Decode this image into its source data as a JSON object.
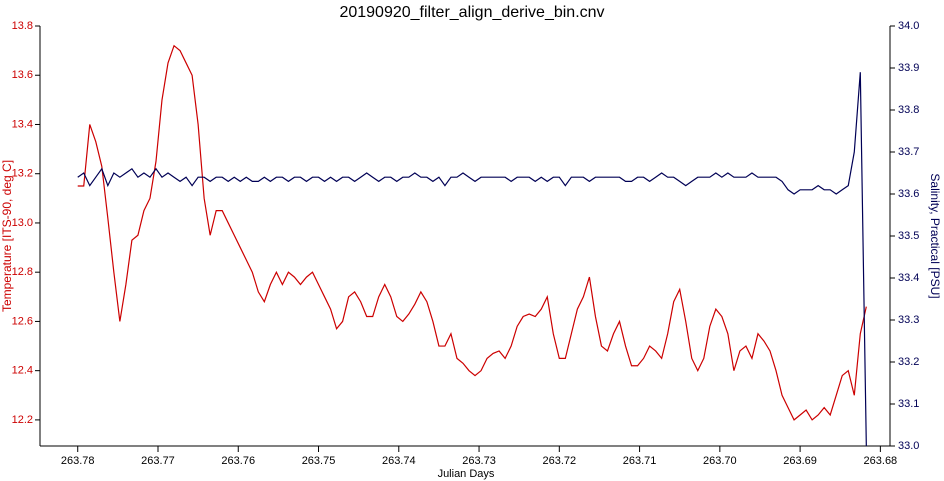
{
  "chart_data": {
    "type": "line",
    "title": "20190920_filter_align_derive_bin.cnv",
    "x_label": "Julian Days",
    "y_label": "Temperature [ITS-90, deg C]",
    "y2_label": "Salinity, Practical [PSU]",
    "xlim": [
      263.7847,
      263.6788
    ],
    "xticks": [
      263.78,
      263.77,
      263.76,
      263.75,
      263.74,
      263.73,
      263.72,
      263.71,
      {
        "value": 263.7,
        "label": "263.70"
      },
      263.69,
      263.68
    ],
    "ylim": [
      12.094,
      13.8
    ],
    "yticks": [
      12.2,
      12.4,
      12.6,
      12.8,
      {
        "value": 13,
        "label": "13.0"
      },
      13.2,
      13.4,
      13.6,
      13.8
    ],
    "y2lim": [
      33,
      34
    ],
    "y2ticks": [
      {
        "value": 33,
        "label": "33.0"
      },
      33.1,
      33.2,
      33.3,
      33.4,
      33.5,
      33.6,
      33.7,
      33.8,
      33.9,
      {
        "value": 34,
        "label": "34.0"
      }
    ],
    "x": [
      263.78,
      263.77925,
      263.7785,
      263.77775,
      263.777,
      263.77625,
      263.7755,
      263.77475,
      263.774,
      263.77325,
      263.7725,
      263.77175,
      263.771,
      263.77025,
      263.7695,
      263.76875,
      263.768,
      263.76725,
      263.7665,
      263.76575,
      263.765,
      263.76425,
      263.7635,
      263.76275,
      263.762,
      263.76125,
      263.7605,
      263.75975,
      263.759,
      263.75825,
      263.7575,
      263.75675,
      263.756,
      263.75525,
      263.7545,
      263.75375,
      263.753,
      263.75225,
      263.7515,
      263.75075,
      263.75,
      263.74925,
      263.7485,
      263.74775,
      263.747,
      263.74625,
      263.7455,
      263.74475,
      263.744,
      263.74325,
      263.7425,
      263.74175,
      263.741,
      263.74025,
      263.7395,
      263.73875,
      263.738,
      263.73725,
      263.7365,
      263.73575,
      263.735,
      263.73425,
      263.7335,
      263.73275,
      263.732,
      263.73125,
      263.7305,
      263.72975,
      263.729,
      263.72825,
      263.7275,
      263.72675,
      263.726,
      263.72525,
      263.7245,
      263.72375,
      263.723,
      263.72225,
      263.7215,
      263.72075,
      263.72,
      263.71925,
      263.7185,
      263.71775,
      263.717,
      263.71625,
      263.7155,
      263.71475,
      263.714,
      263.71325,
      263.7125,
      263.71175,
      263.711,
      263.71025,
      263.7095,
      263.70875,
      263.708,
      263.70725,
      263.7065,
      263.70575,
      263.705,
      263.70425,
      263.7035,
      263.70275,
      263.702,
      263.70125,
      263.7005,
      263.69975,
      263.699,
      263.69825,
      263.6975,
      263.69675,
      263.696,
      263.69525,
      263.6945,
      263.69375,
      263.693,
      263.69225,
      263.6915,
      263.69075,
      263.69,
      263.68925,
      263.6885,
      263.68775,
      263.687,
      263.68625,
      263.6855,
      263.68475,
      263.684,
      263.68325,
      263.6825,
      263.68175
    ],
    "series": [
      {
        "name": "Temperature [ITS-90, deg C]",
        "color": "#cc0000",
        "axis": "y",
        "values": [
          13.15,
          13.15,
          13.4,
          13.33,
          13.23,
          13.02,
          12.8,
          12.6,
          12.75,
          12.93,
          12.95,
          13.05,
          13.1,
          13.25,
          13.5,
          13.65,
          13.72,
          13.7,
          13.65,
          13.6,
          13.4,
          13.1,
          12.95,
          13.05,
          13.05,
          13.0,
          12.95,
          12.9,
          12.85,
          12.8,
          12.72,
          12.68,
          12.75,
          12.8,
          12.75,
          12.8,
          12.78,
          12.75,
          12.78,
          12.8,
          12.75,
          12.7,
          12.65,
          12.57,
          12.6,
          12.7,
          12.72,
          12.68,
          12.62,
          12.62,
          12.7,
          12.75,
          12.7,
          12.62,
          12.6,
          12.63,
          12.67,
          12.72,
          12.68,
          12.6,
          12.5,
          12.5,
          12.55,
          12.45,
          12.43,
          12.4,
          12.38,
          12.4,
          12.45,
          12.47,
          12.48,
          12.45,
          12.5,
          12.58,
          12.62,
          12.63,
          12.62,
          12.65,
          12.7,
          12.55,
          12.45,
          12.45,
          12.55,
          12.65,
          12.7,
          12.78,
          12.62,
          12.5,
          12.48,
          12.55,
          12.6,
          12.5,
          12.42,
          12.42,
          12.45,
          12.5,
          12.48,
          12.45,
          12.55,
          12.68,
          12.73,
          12.6,
          12.45,
          12.4,
          12.45,
          12.58,
          12.65,
          12.62,
          12.55,
          12.4,
          12.48,
          12.5,
          12.45,
          12.55,
          12.52,
          12.48,
          12.4,
          12.3,
          12.25,
          12.2,
          12.22,
          12.24,
          12.2,
          12.22,
          12.25,
          12.22,
          12.3,
          12.38,
          12.4,
          12.3,
          12.55,
          12.66
        ]
      },
      {
        "name": "Salinity, Practical [PSU]",
        "color": "#000055",
        "axis": "y2",
        "values": [
          33.64,
          33.65,
          33.62,
          33.64,
          33.66,
          33.62,
          33.65,
          33.64,
          33.65,
          33.66,
          33.64,
          33.65,
          33.64,
          33.66,
          33.64,
          33.65,
          33.64,
          33.63,
          33.64,
          33.62,
          33.64,
          33.64,
          33.63,
          33.64,
          33.64,
          33.63,
          33.64,
          33.63,
          33.64,
          33.63,
          33.63,
          33.64,
          33.63,
          33.64,
          33.64,
          33.63,
          33.64,
          33.64,
          33.63,
          33.64,
          33.64,
          33.63,
          33.64,
          33.63,
          33.64,
          33.64,
          33.63,
          33.64,
          33.65,
          33.64,
          33.63,
          33.64,
          33.64,
          33.63,
          33.64,
          33.64,
          33.65,
          33.64,
          33.64,
          33.63,
          33.64,
          33.62,
          33.64,
          33.64,
          33.65,
          33.64,
          33.63,
          33.64,
          33.64,
          33.64,
          33.64,
          33.64,
          33.63,
          33.64,
          33.64,
          33.64,
          33.63,
          33.64,
          33.63,
          33.64,
          33.64,
          33.62,
          33.64,
          33.64,
          33.64,
          33.63,
          33.64,
          33.64,
          33.64,
          33.64,
          33.64,
          33.63,
          33.63,
          33.64,
          33.64,
          33.63,
          33.64,
          33.65,
          33.64,
          33.64,
          33.63,
          33.62,
          33.63,
          33.64,
          33.64,
          33.64,
          33.65,
          33.64,
          33.65,
          33.64,
          33.64,
          33.64,
          33.65,
          33.64,
          33.64,
          33.64,
          33.64,
          33.63,
          33.61,
          33.6,
          33.61,
          33.61,
          33.61,
          33.62,
          33.61,
          33.61,
          33.6,
          33.61,
          33.62,
          33.7,
          33.89,
          33.0
        ]
      }
    ]
  }
}
